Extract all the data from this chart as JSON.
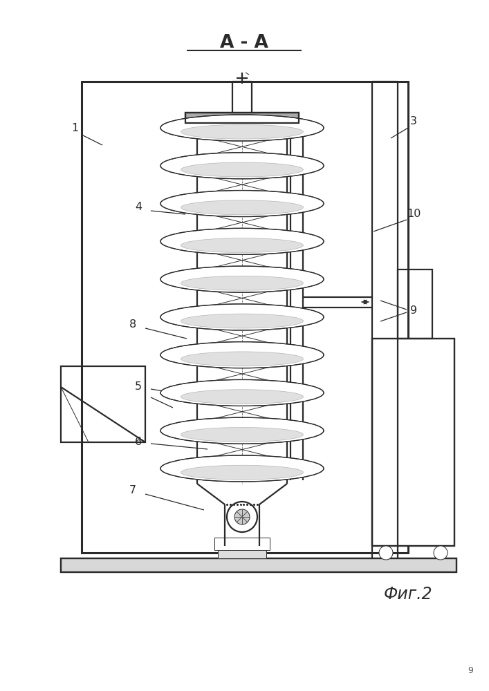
{
  "title": "А - А",
  "fig_label": "Фиг.2",
  "page_number": "9",
  "bg_color": "#ffffff",
  "line_color": "#2a2a2a",
  "lw_main": 1.6,
  "lw_thin": 0.7,
  "lw_thick": 2.2
}
